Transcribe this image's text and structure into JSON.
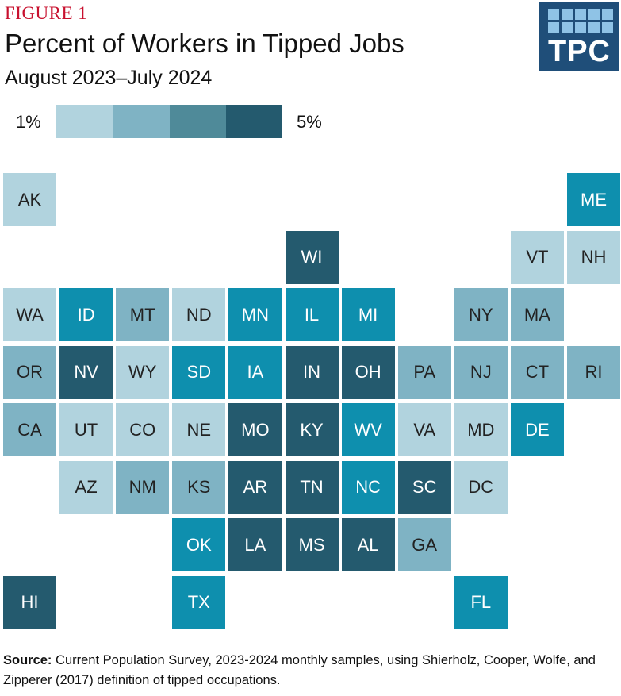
{
  "figure_label": "FIGURE 1",
  "logo_text": "TPC",
  "legend": {
    "min_label": "1%",
    "max_label": "5%"
  },
  "colors": {
    "level1": "#b1d3de",
    "level2": "#7fb3c4",
    "level3": "#4f8a99",
    "level4": "#245a6e",
    "accent": "#0e8fae",
    "dark_text": "#222222",
    "light_text": "#ffffff",
    "figure_label": "#c8102e",
    "logo_bg": "#1f4e79",
    "logo_squares": "#8fc3e6"
  },
  "source": {
    "label": "Source:",
    "text": "Current Population Survey, 2023-2024 monthly samples, using Shierholz, Cooper, Wolfe, and Zipperer (2017) definition of tipped occupations."
  },
  "chart_data": {
    "type": "heatmap",
    "title": "Percent of Workers in Tipped Jobs",
    "subtitle": "August 2023–July 2024",
    "scale": {
      "min": 1,
      "max": 5,
      "unit": "%",
      "levels": 5
    },
    "states": [
      {
        "abbr": "AK",
        "row": 0,
        "col": 0,
        "level": 1
      },
      {
        "abbr": "ME",
        "row": 0,
        "col": 10,
        "level": 5
      },
      {
        "abbr": "WI",
        "row": 1,
        "col": 5,
        "level": 4
      },
      {
        "abbr": "VT",
        "row": 1,
        "col": 9,
        "level": 1
      },
      {
        "abbr": "NH",
        "row": 1,
        "col": 10,
        "level": 1
      },
      {
        "abbr": "WA",
        "row": 2,
        "col": 0,
        "level": 1
      },
      {
        "abbr": "ID",
        "row": 2,
        "col": 1,
        "level": 5
      },
      {
        "abbr": "MT",
        "row": 2,
        "col": 2,
        "level": 2
      },
      {
        "abbr": "ND",
        "row": 2,
        "col": 3,
        "level": 1
      },
      {
        "abbr": "MN",
        "row": 2,
        "col": 4,
        "level": 5
      },
      {
        "abbr": "IL",
        "row": 2,
        "col": 5,
        "level": 5
      },
      {
        "abbr": "MI",
        "row": 2,
        "col": 6,
        "level": 5
      },
      {
        "abbr": "NY",
        "row": 2,
        "col": 8,
        "level": 2
      },
      {
        "abbr": "MA",
        "row": 2,
        "col": 9,
        "level": 2
      },
      {
        "abbr": "OR",
        "row": 3,
        "col": 0,
        "level": 2
      },
      {
        "abbr": "NV",
        "row": 3,
        "col": 1,
        "level": 4
      },
      {
        "abbr": "WY",
        "row": 3,
        "col": 2,
        "level": 1
      },
      {
        "abbr": "SD",
        "row": 3,
        "col": 3,
        "level": 5
      },
      {
        "abbr": "IA",
        "row": 3,
        "col": 4,
        "level": 5
      },
      {
        "abbr": "IN",
        "row": 3,
        "col": 5,
        "level": 4
      },
      {
        "abbr": "OH",
        "row": 3,
        "col": 6,
        "level": 4
      },
      {
        "abbr": "PA",
        "row": 3,
        "col": 7,
        "level": 2
      },
      {
        "abbr": "NJ",
        "row": 3,
        "col": 8,
        "level": 2
      },
      {
        "abbr": "CT",
        "row": 3,
        "col": 9,
        "level": 2
      },
      {
        "abbr": "RI",
        "row": 3,
        "col": 10,
        "level": 2
      },
      {
        "abbr": "CA",
        "row": 4,
        "col": 0,
        "level": 2
      },
      {
        "abbr": "UT",
        "row": 4,
        "col": 1,
        "level": 1
      },
      {
        "abbr": "CO",
        "row": 4,
        "col": 2,
        "level": 1
      },
      {
        "abbr": "NE",
        "row": 4,
        "col": 3,
        "level": 1
      },
      {
        "abbr": "MO",
        "row": 4,
        "col": 4,
        "level": 4
      },
      {
        "abbr": "KY",
        "row": 4,
        "col": 5,
        "level": 4
      },
      {
        "abbr": "WV",
        "row": 4,
        "col": 6,
        "level": 5
      },
      {
        "abbr": "VA",
        "row": 4,
        "col": 7,
        "level": 1
      },
      {
        "abbr": "MD",
        "row": 4,
        "col": 8,
        "level": 1
      },
      {
        "abbr": "DE",
        "row": 4,
        "col": 9,
        "level": 5
      },
      {
        "abbr": "AZ",
        "row": 5,
        "col": 1,
        "level": 1
      },
      {
        "abbr": "NM",
        "row": 5,
        "col": 2,
        "level": 2
      },
      {
        "abbr": "KS",
        "row": 5,
        "col": 3,
        "level": 2
      },
      {
        "abbr": "AR",
        "row": 5,
        "col": 4,
        "level": 4
      },
      {
        "abbr": "TN",
        "row": 5,
        "col": 5,
        "level": 4
      },
      {
        "abbr": "NC",
        "row": 5,
        "col": 6,
        "level": 5
      },
      {
        "abbr": "SC",
        "row": 5,
        "col": 7,
        "level": 4
      },
      {
        "abbr": "DC",
        "row": 5,
        "col": 8,
        "level": 1
      },
      {
        "abbr": "OK",
        "row": 6,
        "col": 3,
        "level": 5
      },
      {
        "abbr": "LA",
        "row": 6,
        "col": 4,
        "level": 4
      },
      {
        "abbr": "MS",
        "row": 6,
        "col": 5,
        "level": 4
      },
      {
        "abbr": "AL",
        "row": 6,
        "col": 6,
        "level": 4
      },
      {
        "abbr": "GA",
        "row": 6,
        "col": 7,
        "level": 2
      },
      {
        "abbr": "HI",
        "row": 7,
        "col": 0,
        "level": 4
      },
      {
        "abbr": "TX",
        "row": 7,
        "col": 3,
        "level": 5
      },
      {
        "abbr": "FL",
        "row": 7,
        "col": 8,
        "level": 5
      }
    ]
  }
}
